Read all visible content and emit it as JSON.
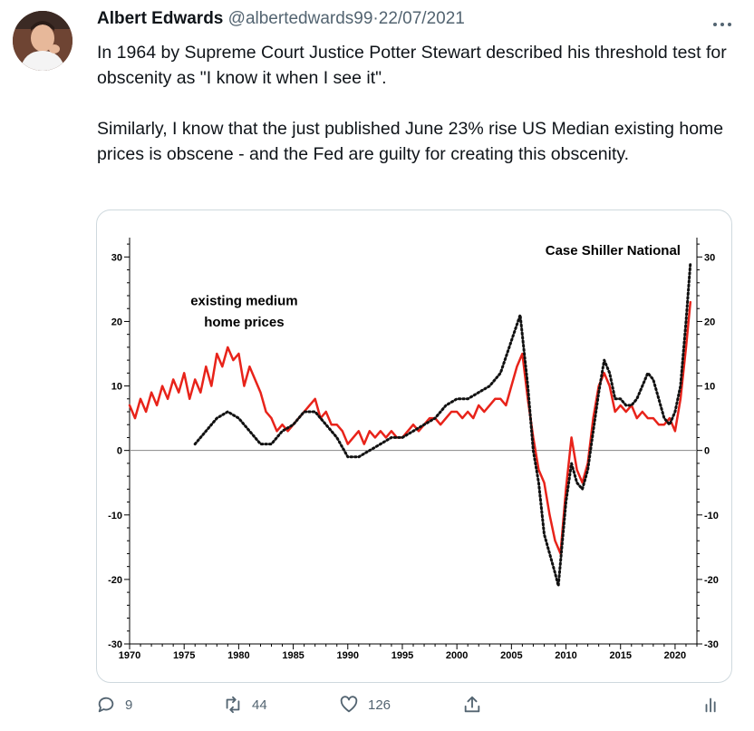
{
  "tweet": {
    "author_name": "Albert Edwards",
    "handle": "@albertedwards99",
    "separator": "·",
    "date": "22/07/2021",
    "more_icon": "ellipsis-icon",
    "paragraph1": "In 1964 by  Supreme Court Justice Potter Stewart described his threshold test for obscenity as \"I know it when I see it\".",
    "paragraph2": "Similarly, I know that the just published June 23% rise US Median existing home prices  is obscene - and the Fed are guilty for creating this obscenity."
  },
  "actions": {
    "reply_count": "9",
    "retweet_count": "44",
    "like_count": "126",
    "reply_icon": "reply-icon",
    "retweet_icon": "retweet-icon",
    "like_icon": "heart-icon",
    "share_icon": "share-icon",
    "analytics_icon": "analytics-icon"
  },
  "chart_data": {
    "type": "line",
    "annotations": [
      "existing medium home prices",
      "Case Shiller National"
    ],
    "x_ticks": [
      "1970",
      "1975",
      "1980",
      "1985",
      "1990",
      "1995",
      "2000",
      "2005",
      "2010",
      "2015",
      "2020"
    ],
    "y_ticks": [
      "30",
      "20",
      "10",
      "0",
      "-10",
      "-20",
      "-30"
    ],
    "xlim": [
      1970,
      2022
    ],
    "ylim": [
      -30,
      33
    ],
    "grid": false,
    "colors": {
      "existing": "#e8231a",
      "case_shiller": "#111111"
    },
    "series": [
      {
        "style": "solid",
        "color": "#e8231a",
        "points": [
          [
            1970.0,
            7
          ],
          [
            1970.5,
            5
          ],
          [
            1971.0,
            8
          ],
          [
            1971.5,
            6
          ],
          [
            1972.0,
            9
          ],
          [
            1972.5,
            7
          ],
          [
            1973.0,
            10
          ],
          [
            1973.5,
            8
          ],
          [
            1974.0,
            11
          ],
          [
            1974.5,
            9
          ],
          [
            1975.0,
            12
          ],
          [
            1975.5,
            8
          ],
          [
            1976.0,
            11
          ],
          [
            1976.5,
            9
          ],
          [
            1977.0,
            13
          ],
          [
            1977.5,
            10
          ],
          [
            1978.0,
            15
          ],
          [
            1978.5,
            13
          ],
          [
            1979.0,
            16
          ],
          [
            1979.5,
            14
          ],
          [
            1980.0,
            15
          ],
          [
            1980.5,
            10
          ],
          [
            1981.0,
            13
          ],
          [
            1981.5,
            11
          ],
          [
            1982.0,
            9
          ],
          [
            1982.5,
            6
          ],
          [
            1983.0,
            5
          ],
          [
            1983.5,
            3
          ],
          [
            1984.0,
            4
          ],
          [
            1984.5,
            3
          ],
          [
            1985.0,
            4
          ],
          [
            1985.5,
            5
          ],
          [
            1986.0,
            6
          ],
          [
            1986.5,
            7
          ],
          [
            1987.0,
            8
          ],
          [
            1987.5,
            5
          ],
          [
            1988.0,
            6
          ],
          [
            1988.5,
            4
          ],
          [
            1989.0,
            4
          ],
          [
            1989.5,
            3
          ],
          [
            1990.0,
            1
          ],
          [
            1990.5,
            2
          ],
          [
            1991.0,
            3
          ],
          [
            1991.5,
            1
          ],
          [
            1992.0,
            3
          ],
          [
            1992.5,
            2
          ],
          [
            1993.0,
            3
          ],
          [
            1993.5,
            2
          ],
          [
            1994.0,
            3
          ],
          [
            1994.5,
            2
          ],
          [
            1995.0,
            2
          ],
          [
            1995.5,
            3
          ],
          [
            1996.0,
            4
          ],
          [
            1996.5,
            3
          ],
          [
            1997.0,
            4
          ],
          [
            1997.5,
            5
          ],
          [
            1998.0,
            5
          ],
          [
            1998.5,
            4
          ],
          [
            1999.0,
            5
          ],
          [
            1999.5,
            6
          ],
          [
            2000.0,
            6
          ],
          [
            2000.5,
            5
          ],
          [
            2001.0,
            6
          ],
          [
            2001.5,
            5
          ],
          [
            2002.0,
            7
          ],
          [
            2002.5,
            6
          ],
          [
            2003.0,
            7
          ],
          [
            2003.5,
            8
          ],
          [
            2004.0,
            8
          ],
          [
            2004.5,
            7
          ],
          [
            2005.0,
            10
          ],
          [
            2005.5,
            13
          ],
          [
            2006.0,
            15
          ],
          [
            2006.5,
            8
          ],
          [
            2007.0,
            2
          ],
          [
            2007.5,
            -3
          ],
          [
            2008.0,
            -5
          ],
          [
            2008.5,
            -10
          ],
          [
            2009.0,
            -14
          ],
          [
            2009.5,
            -16
          ],
          [
            2010.0,
            -6
          ],
          [
            2010.5,
            2
          ],
          [
            2011.0,
            -3
          ],
          [
            2011.5,
            -5
          ],
          [
            2012.0,
            -2
          ],
          [
            2012.5,
            5
          ],
          [
            2013.0,
            10
          ],
          [
            2013.5,
            12
          ],
          [
            2014.0,
            10
          ],
          [
            2014.5,
            6
          ],
          [
            2015.0,
            7
          ],
          [
            2015.5,
            6
          ],
          [
            2016.0,
            7
          ],
          [
            2016.5,
            5
          ],
          [
            2017.0,
            6
          ],
          [
            2017.5,
            5
          ],
          [
            2018.0,
            5
          ],
          [
            2018.5,
            4
          ],
          [
            2019.0,
            4
          ],
          [
            2019.5,
            5
          ],
          [
            2020.0,
            3
          ],
          [
            2020.5,
            8
          ],
          [
            2021.0,
            16
          ],
          [
            2021.4,
            23
          ]
        ]
      },
      {
        "style": "dotted",
        "color": "#111111",
        "points": [
          [
            1976.0,
            1
          ],
          [
            1977.0,
            3
          ],
          [
            1978.0,
            5
          ],
          [
            1979.0,
            6
          ],
          [
            1980.0,
            5
          ],
          [
            1981.0,
            3
          ],
          [
            1982.0,
            1
          ],
          [
            1983.0,
            1
          ],
          [
            1984.0,
            3
          ],
          [
            1985.0,
            4
          ],
          [
            1986.0,
            6
          ],
          [
            1987.0,
            6
          ],
          [
            1988.0,
            4
          ],
          [
            1989.0,
            2
          ],
          [
            1990.0,
            -1
          ],
          [
            1991.0,
            -1
          ],
          [
            1992.0,
            0
          ],
          [
            1993.0,
            1
          ],
          [
            1994.0,
            2
          ],
          [
            1995.0,
            2
          ],
          [
            1996.0,
            3
          ],
          [
            1997.0,
            4
          ],
          [
            1998.0,
            5
          ],
          [
            1999.0,
            7
          ],
          [
            2000.0,
            8
          ],
          [
            2001.0,
            8
          ],
          [
            2002.0,
            9
          ],
          [
            2003.0,
            10
          ],
          [
            2004.0,
            12
          ],
          [
            2005.0,
            17
          ],
          [
            2005.8,
            21
          ],
          [
            2006.5,
            10
          ],
          [
            2007.0,
            0
          ],
          [
            2007.5,
            -5
          ],
          [
            2008.0,
            -13
          ],
          [
            2009.0,
            -19
          ],
          [
            2009.3,
            -21
          ],
          [
            2010.0,
            -8
          ],
          [
            2010.5,
            -2
          ],
          [
            2011.0,
            -5
          ],
          [
            2011.5,
            -6
          ],
          [
            2012.0,
            -3
          ],
          [
            2012.5,
            3
          ],
          [
            2013.0,
            9
          ],
          [
            2013.5,
            14
          ],
          [
            2014.0,
            12
          ],
          [
            2014.5,
            8
          ],
          [
            2015.0,
            8
          ],
          [
            2015.5,
            7
          ],
          [
            2016.0,
            7
          ],
          [
            2016.5,
            8
          ],
          [
            2017.0,
            10
          ],
          [
            2017.5,
            12
          ],
          [
            2018.0,
            11
          ],
          [
            2018.5,
            8
          ],
          [
            2019.0,
            5
          ],
          [
            2019.5,
            4
          ],
          [
            2020.0,
            6
          ],
          [
            2020.5,
            10
          ],
          [
            2021.0,
            20
          ],
          [
            2021.4,
            29
          ]
        ]
      }
    ]
  }
}
